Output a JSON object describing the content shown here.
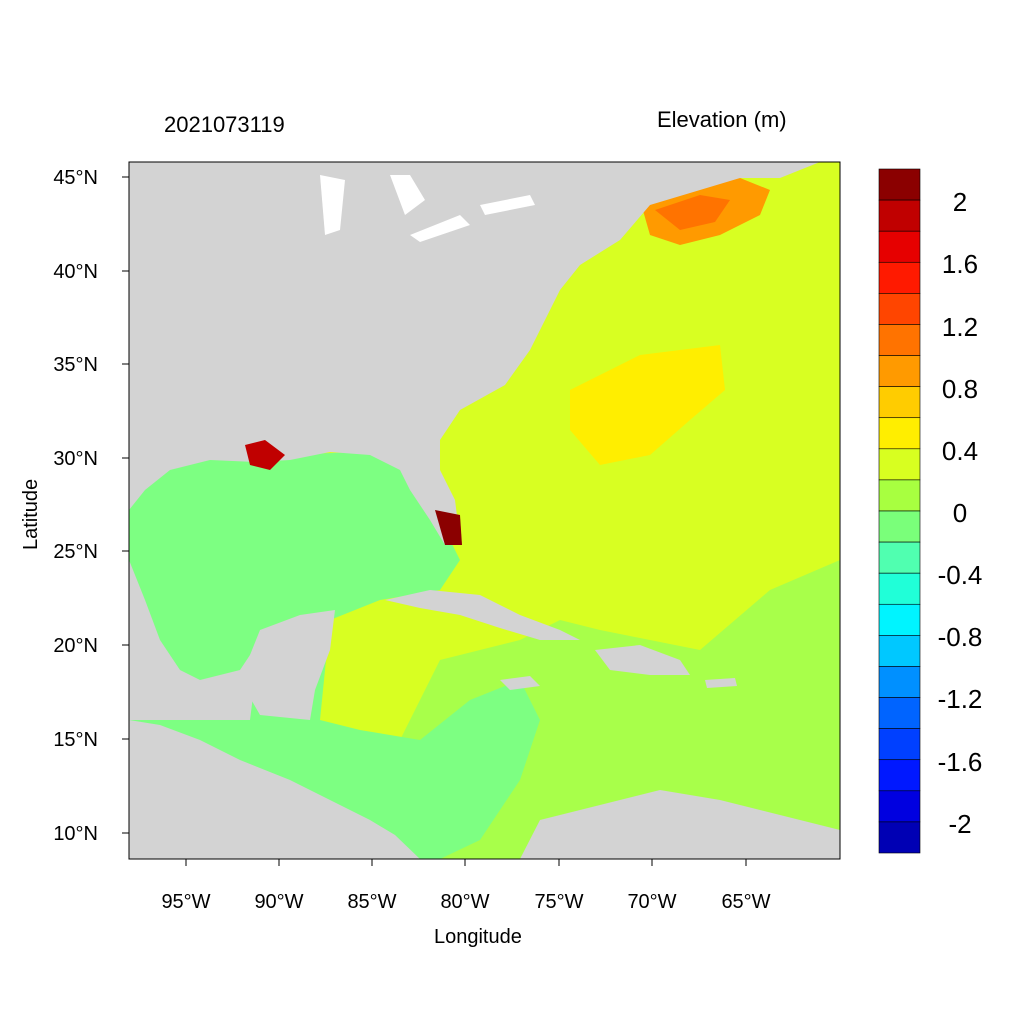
{
  "header": {
    "datetime": "2021073119",
    "variable": "Elevation (m)"
  },
  "axes": {
    "x_title": "Longitude",
    "y_title": "Latitude",
    "x_ticks": [
      "95°W",
      "90°W",
      "85°W",
      "80°W",
      "75°W",
      "70°W",
      "65°W"
    ],
    "y_ticks": [
      "45°N",
      "40°N",
      "35°N",
      "30°N",
      "25°N",
      "20°N",
      "15°N",
      "10°N"
    ]
  },
  "colorbar": {
    "labels": [
      "2",
      "1.6",
      "1.2",
      "0.8",
      "0.4",
      "0",
      "-0.4",
      "-0.8",
      "-1.2",
      "-1.6",
      "-2"
    ],
    "colors": [
      "#8b0000",
      "#c00000",
      "#e60000",
      "#ff1a00",
      "#ff4500",
      "#ff7300",
      "#ff9a00",
      "#ffcc00",
      "#ffee00",
      "#d8ff20",
      "#a8ff40",
      "#7aff7a",
      "#50ffb0",
      "#20ffd8",
      "#00f4ff",
      "#00c8ff",
      "#0090ff",
      "#0064ff",
      "#0040ff",
      "#0018ff",
      "#0000e0",
      "#0000b4"
    ]
  },
  "palette": {
    "land": "#d3d3d3",
    "gulf": "#7dff82",
    "atlantic": "#d8ff22",
    "caribbean": "#a8ff4a"
  }
}
